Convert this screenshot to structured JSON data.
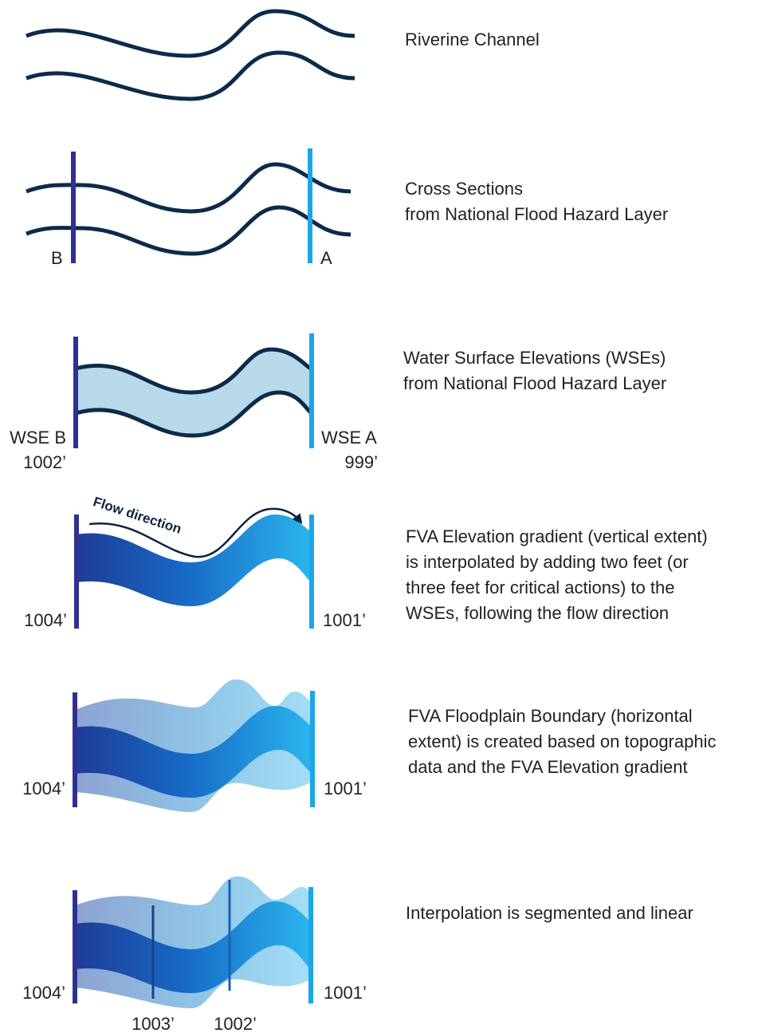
{
  "colors": {
    "channel": "#0d2a4a",
    "section_b": "#2e3192",
    "section_a": "#1ba6e6",
    "wse_fill": "#b8d9ea",
    "gradient_start": "#1f3c96",
    "gradient_end": "#2bb6ee",
    "floodplain_start": "#8ea3d2",
    "floodplain_end": "#a3def6"
  },
  "steps": [
    {
      "name": "riverine-channel",
      "description": [
        "Riverine Channel"
      ]
    },
    {
      "name": "cross-sections",
      "description": [
        "Cross Sections",
        "from National Flood Hazard Layer"
      ],
      "label_left": "B",
      "label_right": "A"
    },
    {
      "name": "water-surface-elevations",
      "description": [
        "Water Surface Elevations (WSEs)",
        "from National Flood Hazard Layer"
      ],
      "label_left": "WSE B",
      "value_left": "1002’",
      "label_right": "WSE A",
      "value_right": "999’"
    },
    {
      "name": "elevation-gradient",
      "description": [
        "FVA Elevation gradient (vertical extent)",
        "is interpolated by adding two feet (or",
        "three feet for critical actions) to the",
        "WSEs, following the flow direction"
      ],
      "flow_label": "Flow direction",
      "value_left": "1004’",
      "value_right": "1001’"
    },
    {
      "name": "floodplain-boundary",
      "description": [
        "FVA Floodplain Boundary (horizontal",
        "extent) is created based on topographic",
        "data and the FVA Elevation gradient"
      ],
      "value_left": "1004’",
      "value_right": "1001’"
    },
    {
      "name": "segmented-interpolation",
      "description": [
        "Interpolation is segmented and linear"
      ],
      "value_left": "1004’",
      "value_right": "1001’",
      "value_mid_1": "1003’",
      "value_mid_2": "1002’"
    }
  ]
}
